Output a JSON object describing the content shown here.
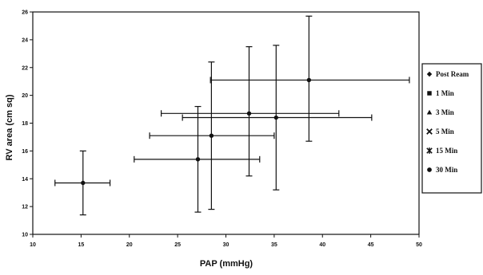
{
  "chart_data": {
    "type": "scatter",
    "title": "",
    "xlabel": "PAP (mmHg)",
    "ylabel": "RV area (cm sq)",
    "xlim": [
      10,
      50
    ],
    "ylim": [
      10,
      26
    ],
    "xticks": [
      10,
      15,
      20,
      25,
      30,
      35,
      40,
      45,
      50
    ],
    "yticks": [
      10,
      12,
      14,
      16,
      18,
      20,
      22,
      24,
      26
    ],
    "grid": false,
    "legend_position": "right",
    "error_bars": true,
    "series": [
      {
        "name": "Post Ream",
        "marker": "diamond",
        "x": 15.2,
        "y": 13.7,
        "x_err": [
          12.3,
          18.0
        ],
        "y_err": [
          11.4,
          16.0
        ]
      },
      {
        "name": "1 Min",
        "marker": "square",
        "x": 27.1,
        "y": 15.4,
        "x_err": [
          20.5,
          33.5
        ],
        "y_err": [
          11.6,
          19.2
        ]
      },
      {
        "name": "3 Min",
        "marker": "triangle",
        "x": 28.5,
        "y": 17.1,
        "x_err": [
          22.1,
          35.0
        ],
        "y_err": [
          11.8,
          22.4
        ]
      },
      {
        "name": "5 Min",
        "marker": "x",
        "x": 32.4,
        "y": 18.7,
        "x_err": [
          23.3,
          41.7
        ],
        "y_err": [
          14.2,
          23.5
        ]
      },
      {
        "name": "15 Min",
        "marker": "asterisk",
        "x": 35.2,
        "y": 18.4,
        "x_err": [
          25.5,
          45.1
        ],
        "y_err": [
          13.2,
          23.6
        ]
      },
      {
        "name": "30 Min",
        "marker": "circle",
        "x": 38.6,
        "y": 21.1,
        "x_err": [
          28.4,
          49.0
        ],
        "y_err": [
          16.7,
          25.7
        ]
      }
    ]
  },
  "colors": {
    "ink": "#111111",
    "background": "#ffffff"
  }
}
